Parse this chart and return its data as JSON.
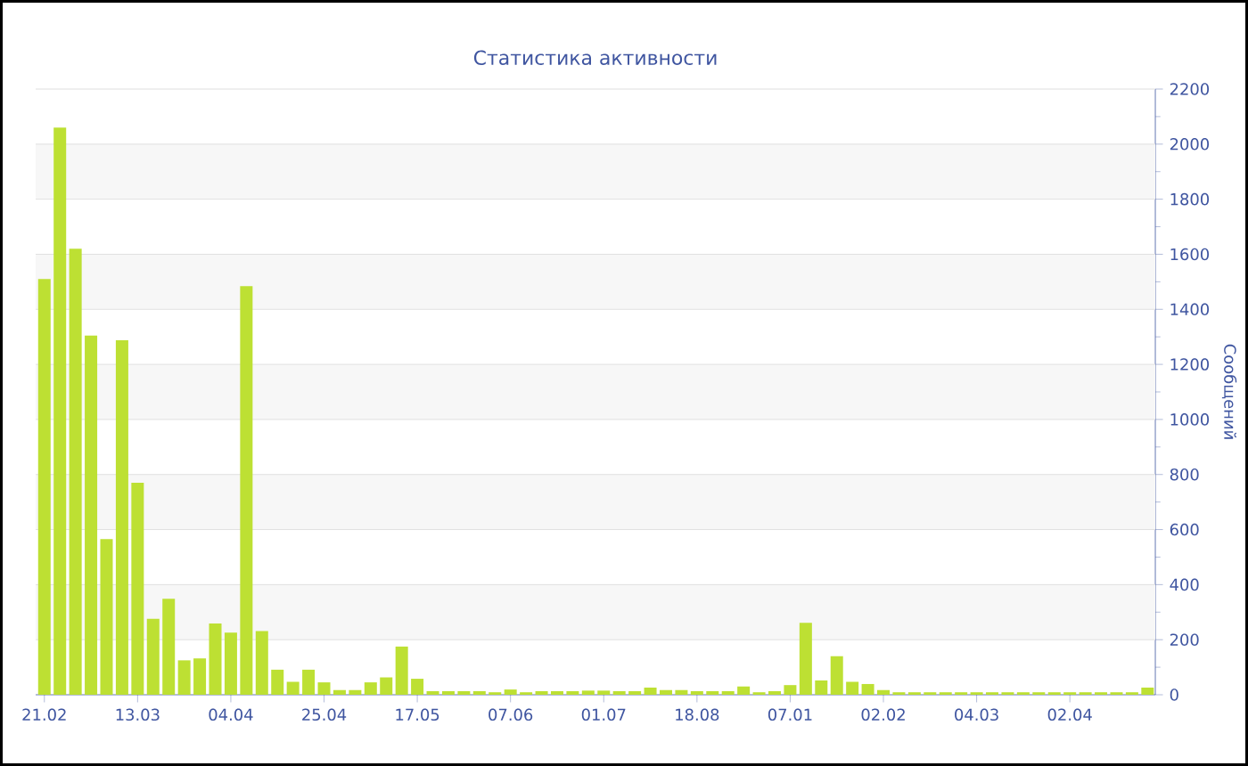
{
  "chart_data": {
    "type": "bar",
    "title": "Статистика активности",
    "ylabel": "Сообщений",
    "color": "#bde033",
    "categories": [
      "21.02",
      null,
      null,
      null,
      null,
      null,
      "13.03",
      null,
      null,
      null,
      null,
      null,
      "04.04",
      null,
      null,
      null,
      null,
      null,
      "25.04",
      null,
      null,
      null,
      null,
      null,
      "17.05",
      null,
      null,
      null,
      null,
      null,
      "07.06",
      null,
      null,
      null,
      null,
      null,
      "01.07",
      null,
      null,
      null,
      null,
      null,
      "18.08",
      null,
      null,
      null,
      null,
      null,
      "07.01",
      null,
      null,
      null,
      null,
      null,
      "02.02",
      null,
      null,
      null,
      null,
      null,
      "04.03",
      null,
      null,
      null,
      null,
      null,
      "02.04",
      null,
      null,
      null,
      null,
      null
    ],
    "values": [
      1510,
      2060,
      1620,
      1305,
      565,
      1288,
      770,
      276,
      349,
      125,
      132,
      259,
      226,
      1484,
      231,
      91,
      47,
      91,
      45,
      17,
      17,
      45,
      63,
      175,
      58,
      13,
      13,
      13,
      13,
      9,
      19,
      9,
      13,
      13,
      13,
      15,
      15,
      13,
      13,
      26,
      17,
      17,
      13,
      13,
      13,
      30,
      9,
      13,
      35,
      261,
      52,
      140,
      47,
      39,
      17,
      9,
      9,
      9,
      9,
      9,
      9,
      9,
      9,
      9,
      9,
      9,
      9,
      9,
      9,
      9,
      9,
      26
    ],
    "ylim": [
      0,
      2200
    ],
    "yticks": [
      0,
      200,
      400,
      600,
      800,
      1000,
      1200,
      1400,
      1600,
      1800,
      2000,
      2200
    ],
    "grid": "y"
  }
}
